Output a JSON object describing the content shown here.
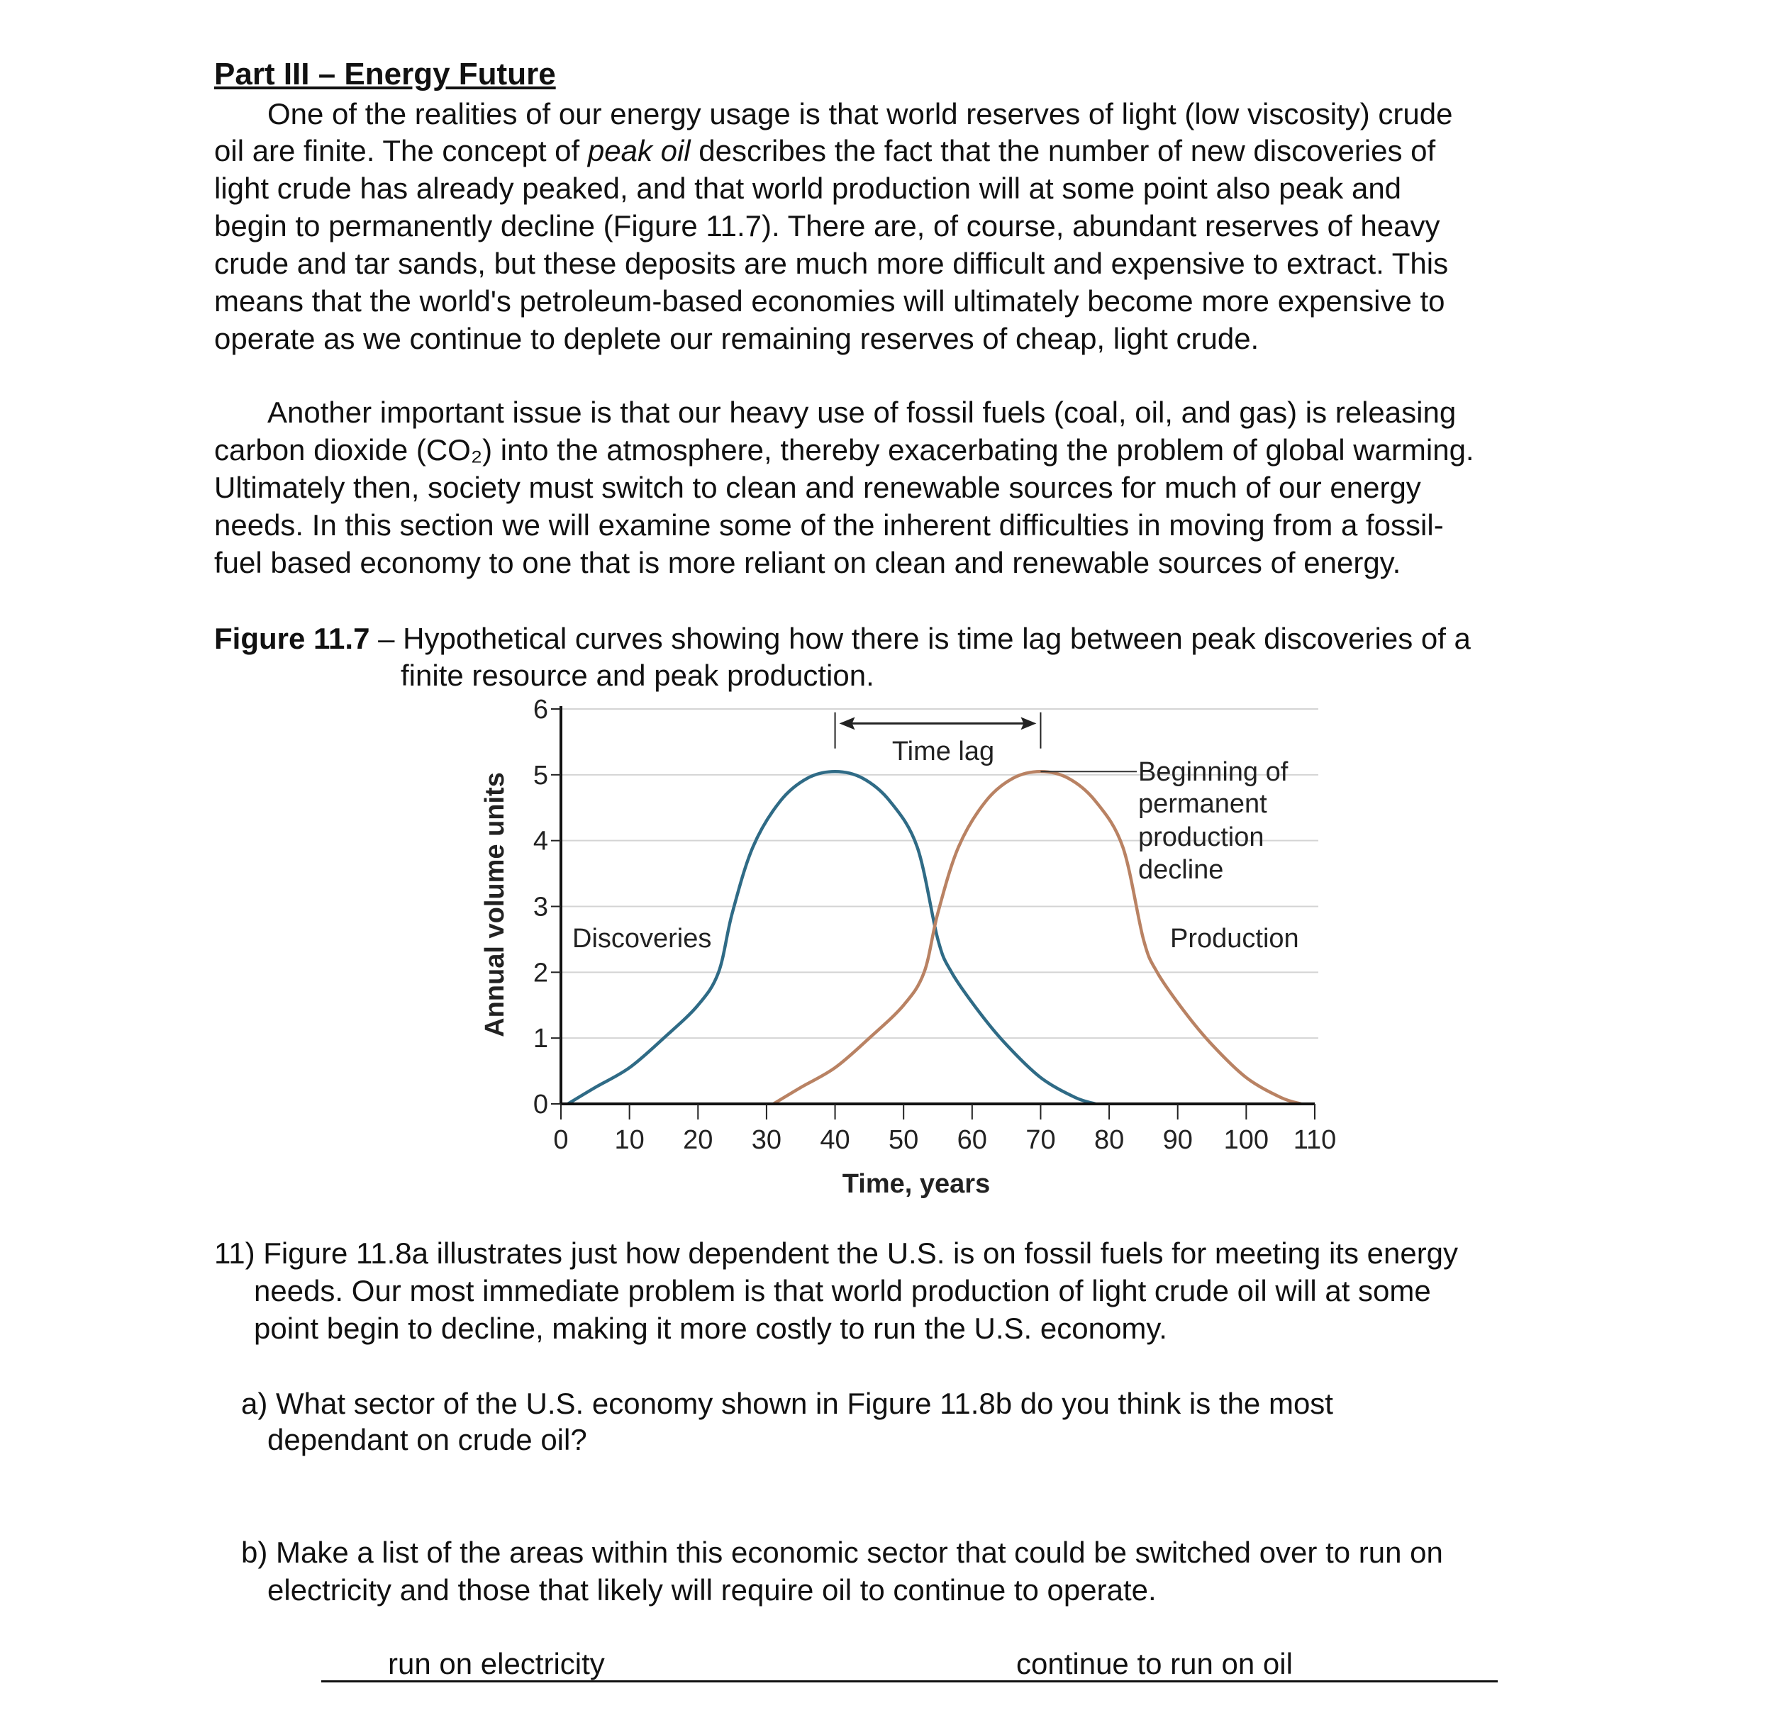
{
  "section_title": "Part III – Energy Future",
  "paragraph1": {
    "line1": "One of the realities of our energy usage is that world reserves of light (low viscosity) crude",
    "line2_a": "oil are finite. The concept of ",
    "line2_italic": "peak oil",
    "line2_b": " describes the fact that the number of new discoveries of",
    "line3": "light crude has already peaked, and that world production will at some point also peak and",
    "line4": "begin to permanently decline (Figure 11.7). There are, of course, abundant reserves of heavy",
    "line5": "crude and tar sands, but these deposits are much more difficult and expensive to extract. This",
    "line6": "means that the world's petroleum-based economies will ultimately become more expensive to",
    "line7": "operate as we continue to deplete our remaining reserves of cheap, light crude."
  },
  "paragraph2": {
    "line1": "Another important issue is that our heavy use of fossil fuels (coal, oil, and gas) is releasing",
    "line2": "carbon dioxide (CO₂) into the atmosphere, thereby exacerbating the problem of global warming.",
    "line3": "Ultimately then, society must switch to clean and renewable sources for much of our energy",
    "line4": "needs. In this section we will examine some of the inherent difficulties in moving from a fossil-",
    "line5": "fuel based economy to one that is more reliant on clean and renewable sources of energy."
  },
  "figure_caption": {
    "label": "Figure 11.7",
    "line1": " – Hypothetical curves showing how there is time lag between peak discoveries of a",
    "line2": "finite resource and peak production."
  },
  "chart_data": {
    "type": "line",
    "xlabel": "Time, years",
    "ylabel": "Annual volume units",
    "xlim": [
      0,
      110
    ],
    "ylim": [
      0,
      6
    ],
    "xticks": [
      "0",
      "10",
      "20",
      "30",
      "40",
      "50",
      "60",
      "70",
      "80",
      "90",
      "100",
      "110"
    ],
    "yticks": [
      "0",
      "1",
      "2",
      "3",
      "4",
      "5",
      "6"
    ],
    "grid": "horizontal",
    "series": [
      {
        "name": "Discoveries",
        "color": "#2f6b86",
        "x": [
          1,
          5,
          10,
          15,
          20,
          23,
          25,
          28,
          32,
          36,
          40,
          44,
          48,
          52,
          55,
          57,
          61,
          65,
          70,
          75,
          78
        ],
        "y": [
          0,
          0.25,
          0.55,
          1.0,
          1.5,
          2.0,
          2.9,
          3.9,
          4.6,
          4.95,
          5.05,
          4.95,
          4.6,
          3.9,
          2.5,
          2.0,
          1.4,
          0.9,
          0.4,
          0.1,
          0
        ]
      },
      {
        "name": "Production",
        "color": "#b98263",
        "x": [
          31,
          35,
          40,
          45,
          50,
          53,
          55,
          58,
          62,
          66,
          70,
          74,
          78,
          82,
          85,
          87,
          91,
          95,
          100,
          105,
          108
        ],
        "y": [
          0,
          0.25,
          0.55,
          1.0,
          1.5,
          2.0,
          2.9,
          3.9,
          4.6,
          4.95,
          5.05,
          4.95,
          4.6,
          3.9,
          2.5,
          2.0,
          1.4,
          0.9,
          0.4,
          0.1,
          0
        ]
      }
    ],
    "annotations": {
      "time_lag": "Time lag",
      "time_lag_range": [
        40,
        70
      ],
      "decline_label": [
        "Beginning of",
        "permanent",
        "production",
        "decline"
      ],
      "discoveries_label": "Discoveries",
      "production_label": "Production"
    }
  },
  "question11": {
    "line1": "11) Figure 11.8a illustrates just how dependent the U.S. is on fossil fuels for meeting its energy",
    "line2": "needs. Our most immediate problem is that world production of light crude oil will at some",
    "line3": "point begin to decline, making it more costly to run the U.S. economy."
  },
  "question_a": {
    "line1": "a) What sector of the U.S. economy shown in Figure 11.8b do you think is the most",
    "line2": "dependant on crude oil?"
  },
  "question_b": {
    "line1": "b) Make a list of the areas within this economic sector that could be switched over to run on",
    "line2": "electricity and those that likely will require oil to continue to operate."
  },
  "table_headers": {
    "left": "run on electricity",
    "right": "continue to run on oil"
  }
}
